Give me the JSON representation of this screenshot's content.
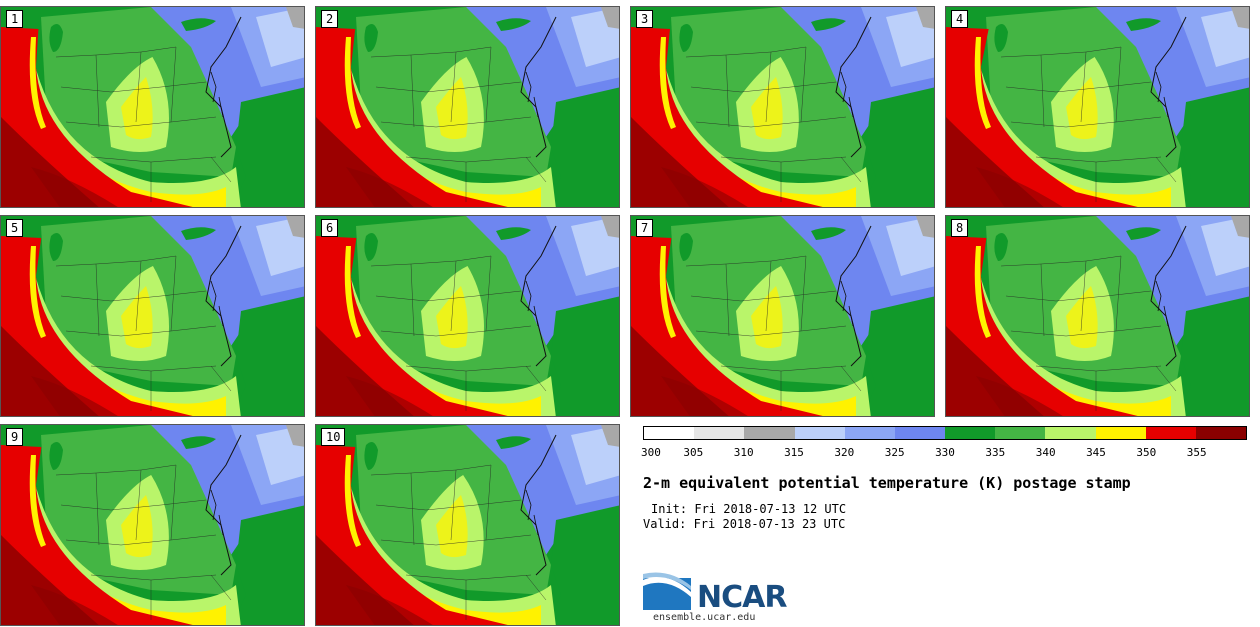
{
  "panels": [
    {
      "label": "1"
    },
    {
      "label": "2"
    },
    {
      "label": "3"
    },
    {
      "label": "4"
    },
    {
      "label": "5"
    },
    {
      "label": "6"
    },
    {
      "label": "7"
    },
    {
      "label": "8"
    },
    {
      "label": "9"
    },
    {
      "label": "10"
    }
  ],
  "colorbar": {
    "ticks": [
      "300",
      "305",
      "310",
      "315",
      "320",
      "325",
      "330",
      "335",
      "340",
      "345",
      "350",
      "355"
    ],
    "colors": [
      "#ffffff",
      "#e6e6e6",
      "#a8a8a8",
      "#bcd0fa",
      "#8ca6f5",
      "#6e86f0",
      "#119a2a",
      "#44b544",
      "#b9f56a",
      "#fff200",
      "#e60000",
      "#8a0000"
    ]
  },
  "title": "2-m equivalent potential temperature (K) postage stamp",
  "init": "Init: Fri 2018-07-13 12 UTC",
  "valid": "Valid: Fri 2018-07-13 23 UTC",
  "logo": {
    "text": "NCAR",
    "url": "ensemble.ucar.edu",
    "icon": "ncar-logo-icon"
  },
  "map_colors": {
    "ocean": "#119a2a",
    "hot": "#e60000",
    "hottest": "#8a0000",
    "warm": "#fff200",
    "mild": "#b9f56a",
    "mid": "#44b544",
    "cool": "#6e86f0",
    "cooler": "#8ca6f5",
    "coolest": "#bcd0fa",
    "gray": "#a8a8a8"
  }
}
